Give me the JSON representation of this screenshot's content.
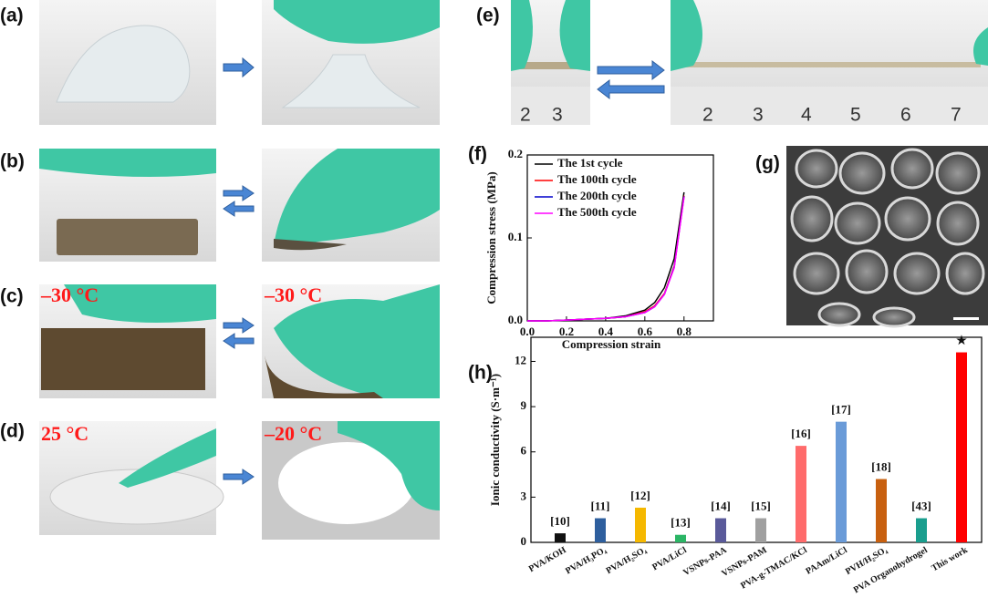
{
  "panels": [
    "(a)",
    "(b)",
    "(c)",
    "(d)",
    "(e)",
    "(f)",
    "(g)",
    "(h)"
  ],
  "temperatures": [
    "–30 °C",
    "–30 °C",
    "25 °C",
    "–20 °C"
  ],
  "ruler_left": [
    "2",
    "3"
  ],
  "ruler_right": [
    "2",
    "3",
    "4",
    "5",
    "6",
    "7"
  ],
  "chart_data": [
    {
      "type": "line",
      "xlabel": "Compression strain",
      "ylabel": "Compression stress (MPa)",
      "x": [
        0,
        0.1,
        0.2,
        0.3,
        0.4,
        0.5,
        0.6,
        0.65,
        0.7,
        0.75,
        0.8
      ],
      "series": [
        {
          "name": "The 1st cycle",
          "color": "#000000",
          "values": [
            0,
            0,
            0.001,
            0.002,
            0.003,
            0.006,
            0.013,
            0.022,
            0.04,
            0.075,
            0.155
          ]
        },
        {
          "name": "The 100th cycle",
          "color": "#ff0000",
          "values": [
            0,
            0,
            0.001,
            0.002,
            0.003,
            0.005,
            0.011,
            0.018,
            0.033,
            0.066,
            0.151
          ]
        },
        {
          "name": "The 200th cycle",
          "color": "#0000cc",
          "values": [
            0,
            0,
            0.001,
            0.002,
            0.003,
            0.005,
            0.01,
            0.017,
            0.032,
            0.065,
            0.15
          ]
        },
        {
          "name": "The 500th cycle",
          "color": "#ff00ff",
          "values": [
            0,
            0,
            0.001,
            0.002,
            0.003,
            0.005,
            0.01,
            0.017,
            0.032,
            0.064,
            0.149
          ]
        }
      ],
      "xlim": [
        0,
        0.95
      ],
      "ylim": [
        0,
        0.2
      ],
      "xticks": [
        {
          "value": 0,
          "label": "0.0"
        },
        0.2,
        0.4,
        0.6,
        0.8
      ],
      "yticks": [
        {
          "value": 0,
          "label": "0.0"
        },
        0.1,
        0.2
      ]
    },
    {
      "type": "bar",
      "ylabel": "Ionic conductivity (S·m⁻¹)",
      "categories": [
        "PVA/KOH",
        "PVA/H₃PO₄",
        "PVA/H₂SO₄",
        "PVA/LiCl",
        "VSNPs-PAA",
        "VSNPs-PAM",
        "PVA-g-TMAC/KCl",
        "PAAm/LiCl",
        "PVH/H₂SO₄",
        "PVA Organohydrogel",
        "This work"
      ],
      "values": [
        0.6,
        1.6,
        2.3,
        0.5,
        1.6,
        1.6,
        6.4,
        8.0,
        4.2,
        1.6,
        12.6
      ],
      "refs": [
        "[10]",
        "[11]",
        "[12]",
        "[13]",
        "[14]",
        "[15]",
        "[16]",
        "[17]",
        "[18]",
        "[43]",
        "★"
      ],
      "colors": [
        "#111111",
        "#2e5f9e",
        "#f5b800",
        "#2bb565",
        "#5a5a9a",
        "#a0a0a0",
        "#ff6b6b",
        "#6a9bd8",
        "#c8600f",
        "#1a9e8e",
        "#ff0000"
      ],
      "ylim": [
        0,
        13.6
      ],
      "yticks": [
        0,
        3,
        6,
        9,
        12
      ]
    }
  ]
}
